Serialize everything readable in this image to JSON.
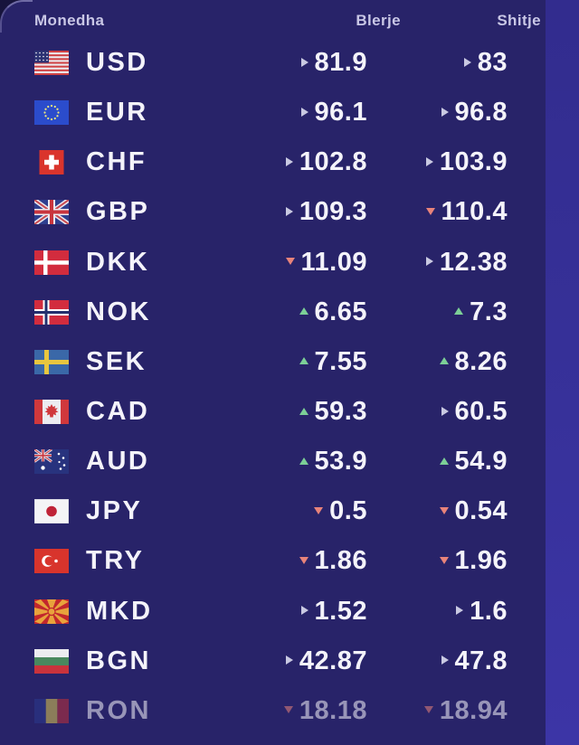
{
  "theme": {
    "card_bg": "#282369",
    "page_bg": "#17143c",
    "right_strip": "#37319a",
    "text_color": "#f4f3fa",
    "header_text_color": "#c9c7e6",
    "trend_colors": {
      "up": "#7ccf97",
      "down": "#e8837a",
      "flat": "#c9c9e2"
    }
  },
  "table": {
    "headers": {
      "currency": "Monedha",
      "buy": "Blerje",
      "sell": "Shitje"
    },
    "rows": [
      {
        "code": "USD",
        "flag": "us",
        "flag_icon": "usa-flag-icon",
        "buy": {
          "value": "81.9",
          "trend": "flat"
        },
        "sell": {
          "value": "83",
          "trend": "flat"
        },
        "faded": false
      },
      {
        "code": "EUR",
        "flag": "eu",
        "flag_icon": "eu-flag-icon",
        "buy": {
          "value": "96.1",
          "trend": "flat"
        },
        "sell": {
          "value": "96.8",
          "trend": "flat"
        },
        "faded": false
      },
      {
        "code": "CHF",
        "flag": "ch",
        "flag_icon": "switzerland-flag-icon",
        "buy": {
          "value": "102.8",
          "trend": "flat"
        },
        "sell": {
          "value": "103.9",
          "trend": "flat"
        },
        "faded": false
      },
      {
        "code": "GBP",
        "flag": "gb",
        "flag_icon": "uk-flag-icon",
        "buy": {
          "value": "109.3",
          "trend": "flat"
        },
        "sell": {
          "value": "110.4",
          "trend": "down"
        },
        "faded": false
      },
      {
        "code": "DKK",
        "flag": "dk",
        "flag_icon": "denmark-flag-icon",
        "buy": {
          "value": "11.09",
          "trend": "down"
        },
        "sell": {
          "value": "12.38",
          "trend": "flat"
        },
        "faded": false
      },
      {
        "code": "NOK",
        "flag": "no",
        "flag_icon": "norway-flag-icon",
        "buy": {
          "value": "6.65",
          "trend": "up"
        },
        "sell": {
          "value": "7.3",
          "trend": "up"
        },
        "faded": false
      },
      {
        "code": "SEK",
        "flag": "se",
        "flag_icon": "sweden-flag-icon",
        "buy": {
          "value": "7.55",
          "trend": "up"
        },
        "sell": {
          "value": "8.26",
          "trend": "up"
        },
        "faded": false
      },
      {
        "code": "CAD",
        "flag": "ca",
        "flag_icon": "canada-flag-icon",
        "buy": {
          "value": "59.3",
          "trend": "up"
        },
        "sell": {
          "value": "60.5",
          "trend": "flat"
        },
        "faded": false
      },
      {
        "code": "AUD",
        "flag": "au",
        "flag_icon": "australia-flag-icon",
        "buy": {
          "value": "53.9",
          "trend": "up"
        },
        "sell": {
          "value": "54.9",
          "trend": "up"
        },
        "faded": false
      },
      {
        "code": "JPY",
        "flag": "jp",
        "flag_icon": "japan-flag-icon",
        "buy": {
          "value": "0.5",
          "trend": "down"
        },
        "sell": {
          "value": "0.54",
          "trend": "down"
        },
        "faded": false
      },
      {
        "code": "TRY",
        "flag": "tr",
        "flag_icon": "turkey-flag-icon",
        "buy": {
          "value": "1.86",
          "trend": "down"
        },
        "sell": {
          "value": "1.96",
          "trend": "down"
        },
        "faded": false
      },
      {
        "code": "MKD",
        "flag": "mk",
        "flag_icon": "macedonia-flag-icon",
        "buy": {
          "value": "1.52",
          "trend": "flat"
        },
        "sell": {
          "value": "1.6",
          "trend": "flat"
        },
        "faded": false
      },
      {
        "code": "BGN",
        "flag": "bg",
        "flag_icon": "bulgaria-flag-icon",
        "buy": {
          "value": "42.87",
          "trend": "flat"
        },
        "sell": {
          "value": "47.8",
          "trend": "flat"
        },
        "faded": false
      },
      {
        "code": "RON",
        "flag": "ro",
        "flag_icon": "romania-flag-icon",
        "buy": {
          "value": "18.18",
          "trend": "down"
        },
        "sell": {
          "value": "18.94",
          "trend": "down"
        },
        "faded": true
      }
    ]
  }
}
